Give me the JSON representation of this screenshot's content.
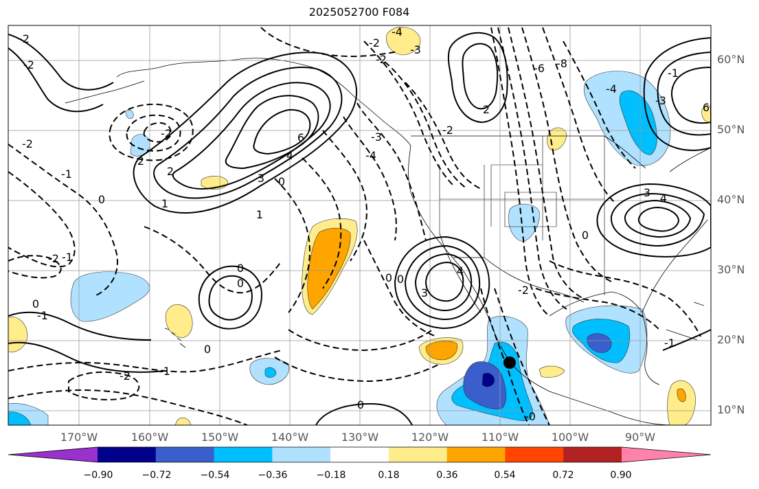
{
  "title": "2025052700 F084",
  "map": {
    "type": "contour-map",
    "projection": "lat-lon",
    "lon_range": [
      "176W",
      "80W"
    ],
    "lat_range": [
      "8N",
      "65N"
    ],
    "gridlines": true,
    "marker": {
      "shape": "filled-circle",
      "color": "#000000",
      "lat": "17N",
      "lon": "108W"
    },
    "contour_style": {
      "positive": "solid black",
      "negative": "dashed black"
    }
  },
  "axes": {
    "lat_labels": [
      "60°N",
      "50°N",
      "40°N",
      "30°N",
      "20°N",
      "10°N"
    ],
    "lon_labels": [
      "170°W",
      "160°W",
      "150°W",
      "140°W",
      "130°W",
      "120°W",
      "110°W",
      "100°W",
      "90°W"
    ]
  },
  "contour_labels": [
    {
      "text": "-2"
    },
    {
      "text": "-2"
    },
    {
      "text": "-2"
    },
    {
      "text": "-1"
    },
    {
      "text": "0"
    },
    {
      "text": "-4"
    },
    {
      "text": "-3"
    },
    {
      "text": "-2"
    },
    {
      "text": "-2"
    },
    {
      "text": "-6"
    },
    {
      "text": "-8"
    },
    {
      "text": "2"
    },
    {
      "text": "-2"
    },
    {
      "text": "2"
    },
    {
      "text": "-2"
    },
    {
      "text": "-1"
    },
    {
      "text": "0"
    },
    {
      "text": "-2"
    },
    {
      "text": "-1"
    },
    {
      "text": "0"
    },
    {
      "text": "2"
    },
    {
      "text": "3"
    },
    {
      "text": "4"
    },
    {
      "text": "6"
    },
    {
      "text": "0"
    },
    {
      "text": "1"
    },
    {
      "text": "-3"
    },
    {
      "text": "-4"
    },
    {
      "text": "0"
    },
    {
      "text": "0"
    },
    {
      "text": "1"
    },
    {
      "text": "0"
    },
    {
      "text": "-2"
    },
    {
      "text": "-1"
    },
    {
      "text": "0"
    },
    {
      "text": "0"
    },
    {
      "text": "3"
    },
    {
      "text": "4"
    },
    {
      "text": "-2"
    },
    {
      "text": "-4"
    },
    {
      "text": "-3"
    },
    {
      "text": "6"
    },
    {
      "text": "3"
    },
    {
      "text": "4"
    },
    {
      "text": "0"
    },
    {
      "text": "-1"
    },
    {
      "text": "-0"
    },
    {
      "text": "-1"
    }
  ],
  "colorbar": {
    "colors": [
      "#9932cc",
      "#00008b",
      "#3a5fcd",
      "#00bfff",
      "#b0e2ff",
      "#ffffff",
      "#ffec8b",
      "#ffa500",
      "#ff4500",
      "#b22222",
      "#ff82ab"
    ],
    "labels": [
      "−0.90",
      "−0.72",
      "−0.54",
      "−0.36",
      "−0.18",
      "0.18",
      "0.36",
      "0.54",
      "0.72",
      "0.90"
    ],
    "extend": "both"
  }
}
